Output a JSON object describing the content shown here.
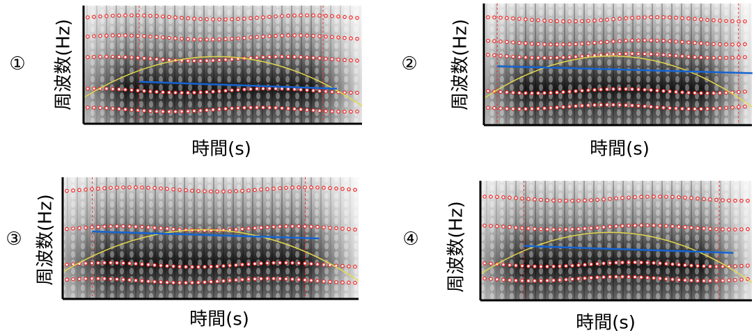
{
  "panels": [
    {
      "marker": "①",
      "y_label": "周波数(Hz)",
      "x_label": "時間(s)"
    },
    {
      "marker": "②",
      "y_label": "周波数(Hz)",
      "x_label": "時間(s)"
    },
    {
      "marker": "③",
      "y_label": "周波数(Hz)",
      "x_label": "時間(s)"
    },
    {
      "marker": "④",
      "y_label": "周波数(Hz)",
      "x_label": "時間(s)"
    }
  ]
}
